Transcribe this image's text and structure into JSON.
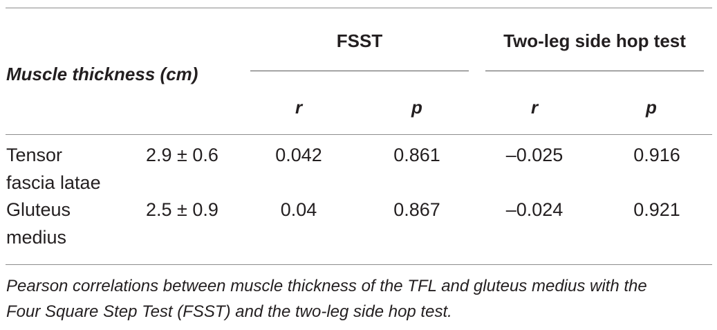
{
  "table": {
    "row_header_label": "Muscle thickness (cm)",
    "groups": [
      {
        "label": "FSST",
        "subcolumns": [
          "r",
          "p"
        ]
      },
      {
        "label": "Two-leg side hop test",
        "subcolumns": [
          "r",
          "p"
        ]
      }
    ],
    "rows": [
      {
        "muscle_line1": "Tensor",
        "muscle_line2": "fascia latae",
        "thickness": "2.9 ± 0.6",
        "fsst_r": "0.042",
        "fsst_p": "0.861",
        "hop_r": "–0.025",
        "hop_p": "0.916"
      },
      {
        "muscle_line1": "Gluteus",
        "muscle_line2": "medius",
        "thickness": "2.5 ± 0.9",
        "fsst_r": "0.04",
        "fsst_p": "0.867",
        "hop_r": "–0.024",
        "hop_p": "0.921"
      }
    ]
  },
  "caption": {
    "line1": "Pearson correlations between muscle thickness of the TFL and gluteus medius with the",
    "line2": "Four Square Step Test (FSST) and the two-leg side hop test."
  }
}
